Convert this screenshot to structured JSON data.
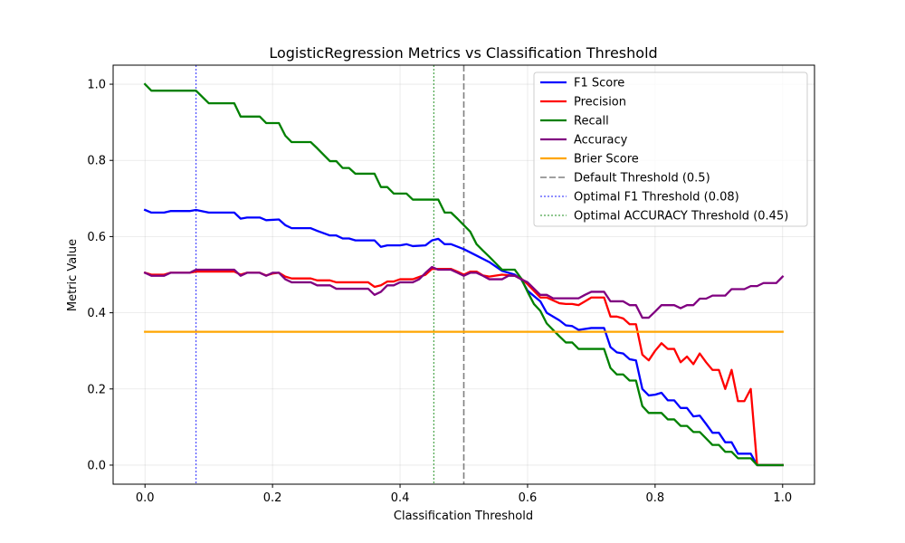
{
  "chart_data": {
    "type": "line",
    "title": "LogisticRegression Metrics vs Classification Threshold",
    "xlabel": "Classification Threshold",
    "ylabel": "Metric Value",
    "xlim": [
      -0.05,
      1.05
    ],
    "ylim": [
      -0.05,
      1.05
    ],
    "xticks": [
      0.0,
      0.2,
      0.4,
      0.6,
      0.8,
      1.0
    ],
    "xtick_labels": [
      "0.0",
      "0.2",
      "0.4",
      "0.6",
      "0.8",
      "1.0"
    ],
    "yticks": [
      0.0,
      0.2,
      0.4,
      0.6,
      0.8,
      1.0
    ],
    "ytick_labels": [
      "0.0",
      "0.2",
      "0.4",
      "0.6",
      "0.8",
      "1.0"
    ],
    "grid": true,
    "legend_position": "top-right",
    "series": [
      {
        "name": "F1 Score",
        "color": "#0000ff",
        "style": "solid",
        "points": [
          [
            0.0,
            0.67
          ],
          [
            0.01,
            0.663
          ],
          [
            0.03,
            0.663
          ],
          [
            0.04,
            0.667
          ],
          [
            0.07,
            0.667
          ],
          [
            0.08,
            0.67
          ],
          [
            0.1,
            0.663
          ],
          [
            0.14,
            0.663
          ],
          [
            0.15,
            0.647
          ],
          [
            0.16,
            0.65
          ],
          [
            0.18,
            0.65
          ],
          [
            0.19,
            0.643
          ],
          [
            0.21,
            0.645
          ],
          [
            0.22,
            0.63
          ],
          [
            0.23,
            0.622
          ],
          [
            0.26,
            0.622
          ],
          [
            0.27,
            0.615
          ],
          [
            0.29,
            0.603
          ],
          [
            0.3,
            0.603
          ],
          [
            0.31,
            0.595
          ],
          [
            0.32,
            0.595
          ],
          [
            0.33,
            0.59
          ],
          [
            0.36,
            0.59
          ],
          [
            0.37,
            0.573
          ],
          [
            0.38,
            0.577
          ],
          [
            0.4,
            0.577
          ],
          [
            0.41,
            0.58
          ],
          [
            0.42,
            0.575
          ],
          [
            0.44,
            0.577
          ],
          [
            0.45,
            0.59
          ],
          [
            0.46,
            0.594
          ],
          [
            0.47,
            0.58
          ],
          [
            0.48,
            0.58
          ],
          [
            0.5,
            0.567
          ],
          [
            0.52,
            0.55
          ],
          [
            0.54,
            0.533
          ],
          [
            0.56,
            0.51
          ],
          [
            0.58,
            0.5
          ],
          [
            0.59,
            0.488
          ],
          [
            0.6,
            0.458
          ],
          [
            0.62,
            0.43
          ],
          [
            0.63,
            0.4
          ],
          [
            0.65,
            0.38
          ],
          [
            0.66,
            0.367
          ],
          [
            0.67,
            0.365
          ],
          [
            0.68,
            0.355
          ],
          [
            0.7,
            0.36
          ],
          [
            0.72,
            0.36
          ],
          [
            0.73,
            0.31
          ],
          [
            0.74,
            0.296
          ],
          [
            0.75,
            0.293
          ],
          [
            0.76,
            0.278
          ],
          [
            0.77,
            0.275
          ],
          [
            0.78,
            0.2
          ],
          [
            0.79,
            0.183
          ],
          [
            0.8,
            0.185
          ],
          [
            0.81,
            0.19
          ],
          [
            0.82,
            0.17
          ],
          [
            0.83,
            0.17
          ],
          [
            0.84,
            0.15
          ],
          [
            0.85,
            0.15
          ],
          [
            0.86,
            0.128
          ],
          [
            0.87,
            0.13
          ],
          [
            0.88,
            0.108
          ],
          [
            0.89,
            0.085
          ],
          [
            0.9,
            0.085
          ],
          [
            0.91,
            0.06
          ],
          [
            0.92,
            0.06
          ],
          [
            0.93,
            0.03
          ],
          [
            0.95,
            0.03
          ],
          [
            0.96,
            0.0
          ],
          [
            1.0,
            0.0
          ]
        ]
      },
      {
        "name": "Precision",
        "color": "#ff0000",
        "style": "solid",
        "points": [
          [
            0.0,
            0.505
          ],
          [
            0.01,
            0.5
          ],
          [
            0.03,
            0.5
          ],
          [
            0.04,
            0.505
          ],
          [
            0.07,
            0.505
          ],
          [
            0.08,
            0.508
          ],
          [
            0.14,
            0.508
          ],
          [
            0.15,
            0.5
          ],
          [
            0.16,
            0.505
          ],
          [
            0.18,
            0.505
          ],
          [
            0.19,
            0.498
          ],
          [
            0.2,
            0.503
          ],
          [
            0.21,
            0.505
          ],
          [
            0.22,
            0.495
          ],
          [
            0.23,
            0.49
          ],
          [
            0.26,
            0.49
          ],
          [
            0.27,
            0.485
          ],
          [
            0.29,
            0.485
          ],
          [
            0.3,
            0.48
          ],
          [
            0.35,
            0.48
          ],
          [
            0.36,
            0.468
          ],
          [
            0.37,
            0.472
          ],
          [
            0.38,
            0.482
          ],
          [
            0.39,
            0.482
          ],
          [
            0.4,
            0.488
          ],
          [
            0.42,
            0.488
          ],
          [
            0.44,
            0.5
          ],
          [
            0.45,
            0.515
          ],
          [
            0.46,
            0.515
          ],
          [
            0.48,
            0.515
          ],
          [
            0.49,
            0.508
          ],
          [
            0.5,
            0.5
          ],
          [
            0.51,
            0.508
          ],
          [
            0.52,
            0.508
          ],
          [
            0.53,
            0.498
          ],
          [
            0.54,
            0.495
          ],
          [
            0.56,
            0.5
          ],
          [
            0.58,
            0.497
          ],
          [
            0.59,
            0.49
          ],
          [
            0.6,
            0.475
          ],
          [
            0.62,
            0.44
          ],
          [
            0.63,
            0.44
          ],
          [
            0.65,
            0.425
          ],
          [
            0.66,
            0.423
          ],
          [
            0.67,
            0.423
          ],
          [
            0.68,
            0.42
          ],
          [
            0.69,
            0.43
          ],
          [
            0.7,
            0.44
          ],
          [
            0.72,
            0.44
          ],
          [
            0.73,
            0.39
          ],
          [
            0.74,
            0.39
          ],
          [
            0.75,
            0.385
          ],
          [
            0.76,
            0.37
          ],
          [
            0.77,
            0.37
          ],
          [
            0.78,
            0.29
          ],
          [
            0.79,
            0.275
          ],
          [
            0.8,
            0.3
          ],
          [
            0.81,
            0.32
          ],
          [
            0.82,
            0.305
          ],
          [
            0.83,
            0.305
          ],
          [
            0.84,
            0.27
          ],
          [
            0.85,
            0.285
          ],
          [
            0.86,
            0.265
          ],
          [
            0.87,
            0.293
          ],
          [
            0.88,
            0.27
          ],
          [
            0.89,
            0.25
          ],
          [
            0.9,
            0.25
          ],
          [
            0.91,
            0.2
          ],
          [
            0.92,
            0.25
          ],
          [
            0.93,
            0.168
          ],
          [
            0.94,
            0.168
          ],
          [
            0.95,
            0.2
          ],
          [
            0.96,
            0.0
          ],
          [
            1.0,
            0.0
          ]
        ]
      },
      {
        "name": "Recall",
        "color": "#008000",
        "style": "solid",
        "points": [
          [
            0.0,
            1.0
          ],
          [
            0.01,
            0.983
          ],
          [
            0.08,
            0.983
          ],
          [
            0.1,
            0.95
          ],
          [
            0.14,
            0.95
          ],
          [
            0.15,
            0.915
          ],
          [
            0.18,
            0.915
          ],
          [
            0.19,
            0.898
          ],
          [
            0.21,
            0.898
          ],
          [
            0.22,
            0.865
          ],
          [
            0.23,
            0.848
          ],
          [
            0.26,
            0.848
          ],
          [
            0.27,
            0.832
          ],
          [
            0.28,
            0.815
          ],
          [
            0.29,
            0.798
          ],
          [
            0.3,
            0.798
          ],
          [
            0.31,
            0.78
          ],
          [
            0.32,
            0.78
          ],
          [
            0.33,
            0.765
          ],
          [
            0.36,
            0.765
          ],
          [
            0.37,
            0.73
          ],
          [
            0.38,
            0.73
          ],
          [
            0.39,
            0.713
          ],
          [
            0.41,
            0.713
          ],
          [
            0.42,
            0.697
          ],
          [
            0.46,
            0.697
          ],
          [
            0.47,
            0.663
          ],
          [
            0.48,
            0.663
          ],
          [
            0.49,
            0.647
          ],
          [
            0.5,
            0.63
          ],
          [
            0.51,
            0.613
          ],
          [
            0.52,
            0.58
          ],
          [
            0.53,
            0.563
          ],
          [
            0.54,
            0.547
          ],
          [
            0.55,
            0.53
          ],
          [
            0.56,
            0.513
          ],
          [
            0.58,
            0.513
          ],
          [
            0.59,
            0.49
          ],
          [
            0.6,
            0.455
          ],
          [
            0.61,
            0.423
          ],
          [
            0.62,
            0.405
          ],
          [
            0.63,
            0.372
          ],
          [
            0.64,
            0.355
          ],
          [
            0.65,
            0.338
          ],
          [
            0.66,
            0.322
          ],
          [
            0.67,
            0.322
          ],
          [
            0.68,
            0.305
          ],
          [
            0.72,
            0.305
          ],
          [
            0.73,
            0.255
          ],
          [
            0.74,
            0.238
          ],
          [
            0.75,
            0.238
          ],
          [
            0.76,
            0.222
          ],
          [
            0.77,
            0.222
          ],
          [
            0.78,
            0.155
          ],
          [
            0.79,
            0.137
          ],
          [
            0.81,
            0.137
          ],
          [
            0.82,
            0.12
          ],
          [
            0.83,
            0.12
          ],
          [
            0.84,
            0.103
          ],
          [
            0.85,
            0.103
          ],
          [
            0.86,
            0.087
          ],
          [
            0.87,
            0.087
          ],
          [
            0.88,
            0.07
          ],
          [
            0.89,
            0.053
          ],
          [
            0.9,
            0.053
          ],
          [
            0.91,
            0.035
          ],
          [
            0.92,
            0.035
          ],
          [
            0.93,
            0.018
          ],
          [
            0.95,
            0.018
          ],
          [
            0.96,
            0.0
          ],
          [
            1.0,
            0.0
          ]
        ]
      },
      {
        "name": "Accuracy",
        "color": "#800080",
        "style": "solid",
        "points": [
          [
            0.0,
            0.505
          ],
          [
            0.01,
            0.497
          ],
          [
            0.03,
            0.497
          ],
          [
            0.04,
            0.505
          ],
          [
            0.07,
            0.505
          ],
          [
            0.08,
            0.513
          ],
          [
            0.14,
            0.513
          ],
          [
            0.15,
            0.497
          ],
          [
            0.16,
            0.505
          ],
          [
            0.18,
            0.505
          ],
          [
            0.19,
            0.497
          ],
          [
            0.2,
            0.505
          ],
          [
            0.21,
            0.505
          ],
          [
            0.22,
            0.488
          ],
          [
            0.23,
            0.48
          ],
          [
            0.26,
            0.48
          ],
          [
            0.27,
            0.472
          ],
          [
            0.29,
            0.472
          ],
          [
            0.3,
            0.463
          ],
          [
            0.35,
            0.463
          ],
          [
            0.36,
            0.447
          ],
          [
            0.37,
            0.455
          ],
          [
            0.38,
            0.472
          ],
          [
            0.39,
            0.472
          ],
          [
            0.4,
            0.48
          ],
          [
            0.42,
            0.48
          ],
          [
            0.43,
            0.488
          ],
          [
            0.44,
            0.505
          ],
          [
            0.45,
            0.52
          ],
          [
            0.46,
            0.513
          ],
          [
            0.48,
            0.513
          ],
          [
            0.49,
            0.505
          ],
          [
            0.5,
            0.497
          ],
          [
            0.51,
            0.505
          ],
          [
            0.52,
            0.505
          ],
          [
            0.53,
            0.497
          ],
          [
            0.54,
            0.488
          ],
          [
            0.56,
            0.488
          ],
          [
            0.57,
            0.497
          ],
          [
            0.58,
            0.497
          ],
          [
            0.59,
            0.488
          ],
          [
            0.6,
            0.48
          ],
          [
            0.62,
            0.447
          ],
          [
            0.63,
            0.447
          ],
          [
            0.64,
            0.438
          ],
          [
            0.68,
            0.438
          ],
          [
            0.69,
            0.447
          ],
          [
            0.7,
            0.455
          ],
          [
            0.72,
            0.455
          ],
          [
            0.73,
            0.43
          ],
          [
            0.75,
            0.43
          ],
          [
            0.76,
            0.42
          ],
          [
            0.77,
            0.42
          ],
          [
            0.78,
            0.387
          ],
          [
            0.79,
            0.387
          ],
          [
            0.8,
            0.403
          ],
          [
            0.81,
            0.42
          ],
          [
            0.83,
            0.42
          ],
          [
            0.84,
            0.412
          ],
          [
            0.85,
            0.42
          ],
          [
            0.86,
            0.42
          ],
          [
            0.87,
            0.437
          ],
          [
            0.88,
            0.437
          ],
          [
            0.89,
            0.445
          ],
          [
            0.91,
            0.445
          ],
          [
            0.92,
            0.462
          ],
          [
            0.94,
            0.462
          ],
          [
            0.95,
            0.47
          ],
          [
            0.96,
            0.47
          ],
          [
            0.97,
            0.478
          ],
          [
            0.99,
            0.478
          ],
          [
            1.0,
            0.495
          ]
        ]
      },
      {
        "name": "Brier Score",
        "color": "#ffa500",
        "style": "solid",
        "points": [
          [
            0.0,
            0.35
          ],
          [
            1.0,
            0.35
          ]
        ]
      }
    ],
    "vlines": [
      {
        "name": "Default Threshold (0.5)",
        "x": 0.5,
        "color": "#808080",
        "style": "dashed"
      },
      {
        "name": "Optimal F1 Threshold (0.08)",
        "x": 0.08,
        "color": "#0000ff",
        "style": "dotted"
      },
      {
        "name": "Optimal ACCURACY Threshold (0.45)",
        "x": 0.453,
        "color": "#008000",
        "style": "dotted"
      }
    ]
  }
}
